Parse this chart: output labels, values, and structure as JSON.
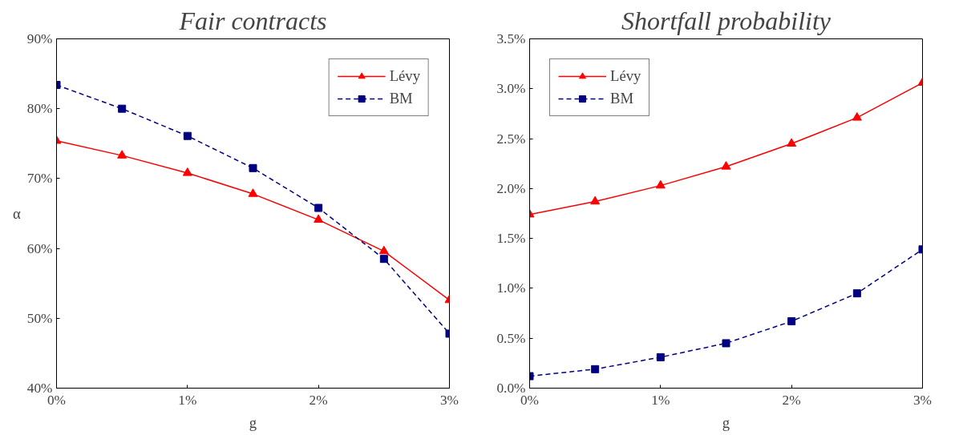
{
  "chart_data": [
    {
      "type": "line",
      "title": "Fair contracts",
      "xlabel": "g",
      "ylabel": "α",
      "x": [
        0,
        0.5,
        1,
        1.5,
        2,
        2.5,
        3
      ],
      "series": [
        {
          "name": "Lévy",
          "color": "#ff0000",
          "marker": "triangle",
          "line_style": "solid",
          "values": [
            75.4,
            73.3,
            70.8,
            67.8,
            64.1,
            59.6,
            52.6
          ]
        },
        {
          "name": "BM",
          "color": "#000080",
          "marker": "square",
          "line_style": "dashed",
          "values": [
            83.4,
            80.0,
            76.1,
            71.5,
            65.8,
            58.5,
            47.8
          ]
        }
      ],
      "xlim": [
        0,
        3
      ],
      "xticks": [
        {
          "value": 0,
          "label": "0%"
        },
        {
          "value": 1,
          "label": "1%"
        },
        {
          "value": 2,
          "label": "2%"
        },
        {
          "value": 3,
          "label": "3%"
        }
      ],
      "ylim": [
        40,
        90
      ],
      "yticks": [
        {
          "value": 40,
          "label": "40%"
        },
        {
          "value": 50,
          "label": "50%"
        },
        {
          "value": 60,
          "label": "60%"
        },
        {
          "value": 70,
          "label": "70%"
        },
        {
          "value": 80,
          "label": "80%"
        },
        {
          "value": 90,
          "label": "90%"
        }
      ],
      "grid": false,
      "legend": "top right"
    },
    {
      "type": "line",
      "title": "Shortfall probability",
      "xlabel": "g",
      "x": [
        0,
        0.5,
        1,
        1.5,
        2,
        2.5,
        3
      ],
      "series": [
        {
          "name": "Lévy",
          "color": "#ff0000",
          "marker": "triangle",
          "line_style": "solid",
          "values": [
            1.74,
            1.87,
            2.03,
            2.22,
            2.45,
            2.71,
            3.06
          ]
        },
        {
          "name": "BM",
          "color": "#000080",
          "marker": "square",
          "line_style": "dashed",
          "values": [
            0.12,
            0.19,
            0.31,
            0.45,
            0.67,
            0.95,
            1.39
          ]
        }
      ],
      "xlim": [
        0,
        3
      ],
      "xticks": [
        {
          "value": 0,
          "label": "0%"
        },
        {
          "value": 1,
          "label": "1%"
        },
        {
          "value": 2,
          "label": "2%"
        },
        {
          "value": 3,
          "label": "3%"
        }
      ],
      "ylim": [
        0,
        3.5
      ],
      "yticks": [
        {
          "value": 0,
          "label": "0.0%"
        },
        {
          "value": 0.5,
          "label": "0.5%"
        },
        {
          "value": 1,
          "label": "1.0%"
        },
        {
          "value": 1.5,
          "label": "1.5%"
        },
        {
          "value": 2,
          "label": "2.0%"
        },
        {
          "value": 2.5,
          "label": "2.5%"
        },
        {
          "value": 3,
          "label": "3.0%"
        },
        {
          "value": 3.5,
          "label": "3.5%"
        }
      ],
      "grid": false,
      "legend": "top left"
    }
  ]
}
